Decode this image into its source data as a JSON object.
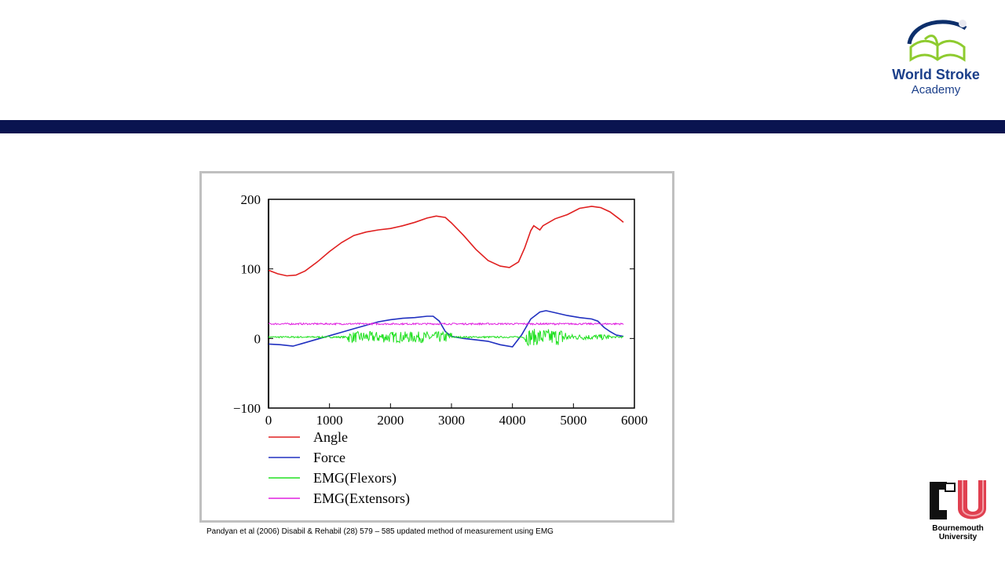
{
  "header": {
    "logo_title": "World Stroke",
    "logo_subtitle": "Academy",
    "bar_color": "#0a1450"
  },
  "footer": {
    "citation": "Pandyan et al (2006) Disabil & Rehabil (28) 579 – 585 updated method  of measurement  using EMG",
    "university_logo_text": "Bournemouth University"
  },
  "chart_data": {
    "type": "line",
    "title": "",
    "xlabel": "",
    "ylabel": "",
    "xlim": [
      0,
      6000
    ],
    "ylim": [
      -100,
      200
    ],
    "x_ticks": [
      "0",
      "1000",
      "2000",
      "3000",
      "4000",
      "5000",
      "6000"
    ],
    "y_ticks": [
      "200",
      "100",
      "0",
      "−100"
    ],
    "legend_position": "below",
    "series": [
      {
        "name": "Angle",
        "color": "#e02020",
        "x": [
          0,
          150,
          300,
          450,
          600,
          800,
          1000,
          1200,
          1400,
          1600,
          1800,
          2000,
          2200,
          2400,
          2600,
          2750,
          2900,
          3000,
          3200,
          3400,
          3600,
          3800,
          3950,
          4100,
          4200,
          4300,
          4350,
          4400,
          4450,
          4500,
          4700,
          4900,
          5100,
          5300,
          5450,
          5600,
          5750,
          5820
        ],
        "y": [
          98,
          93,
          90,
          91,
          97,
          110,
          125,
          138,
          148,
          153,
          156,
          158,
          162,
          167,
          173,
          176,
          174,
          166,
          148,
          128,
          112,
          104,
          102,
          110,
          130,
          155,
          162,
          159,
          156,
          162,
          172,
          178,
          187,
          190,
          188,
          182,
          172,
          167
        ]
      },
      {
        "name": "Force",
        "color": "#2030c0",
        "x": [
          0,
          200,
          400,
          600,
          800,
          1000,
          1200,
          1400,
          1600,
          1800,
          2000,
          2200,
          2400,
          2600,
          2700,
          2800,
          2900,
          3000,
          3200,
          3400,
          3600,
          3800,
          4000,
          4150,
          4300,
          4450,
          4550,
          4700,
          4900,
          5100,
          5300,
          5400,
          5500,
          5600,
          5700,
          5820
        ],
        "y": [
          -8,
          -9,
          -11,
          -6,
          -1,
          4,
          9,
          14,
          19,
          24,
          27,
          29,
          30,
          32,
          32,
          25,
          10,
          3,
          0,
          -2,
          -4,
          -9,
          -12,
          5,
          28,
          38,
          40,
          37,
          33,
          30,
          28,
          25,
          16,
          10,
          5,
          3
        ]
      },
      {
        "name": "EMG(Flexors)",
        "color": "#20e020",
        "x_start": 0,
        "x_end": 5820,
        "baseline": 2,
        "bursts": [
          {
            "from": 1300,
            "to": 3000,
            "amplitude": 8
          },
          {
            "from": 4200,
            "to": 4900,
            "amplitude": 12
          },
          {
            "from": 4900,
            "to": 5600,
            "amplitude": 4
          }
        ]
      },
      {
        "name": "EMG(Extensors)",
        "color": "#e020e0",
        "x_start": 0,
        "x_end": 5820,
        "baseline": 21,
        "bursts": []
      }
    ]
  }
}
